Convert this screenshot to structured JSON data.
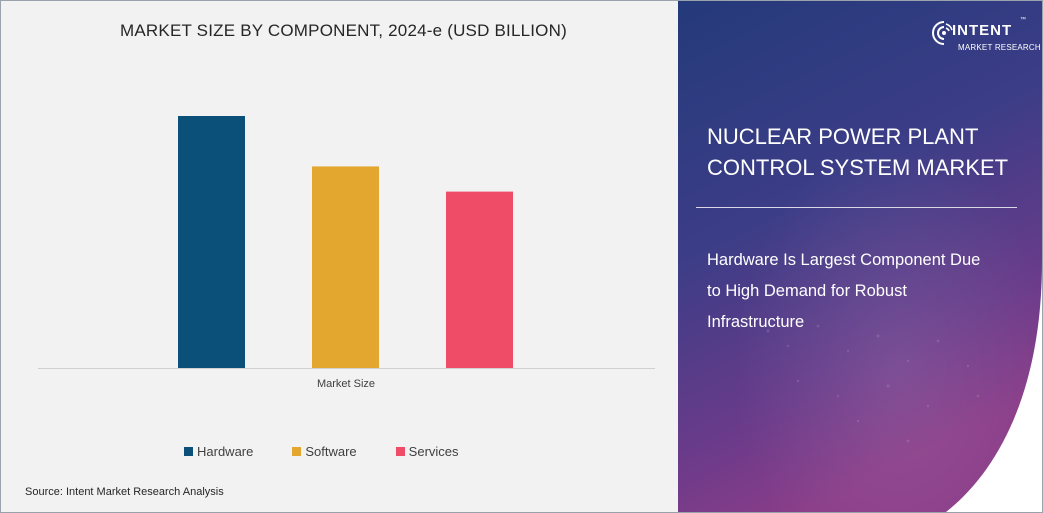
{
  "chart_data": {
    "type": "bar",
    "title": "MARKET SIZE BY COMPONENT, 2024-e (USD BILLION)",
    "categories": [
      "Market Size"
    ],
    "xlabel": "",
    "ylabel": "",
    "grid": false,
    "legend_position": "bottom",
    "series": [
      {
        "name": "Hardware",
        "values": [
          100
        ],
        "color": "#0b5078"
      },
      {
        "name": "Software",
        "values": [
          80
        ],
        "color": "#e3a72f"
      },
      {
        "name": "Services",
        "values": [
          70
        ],
        "color": "#ef4c68"
      }
    ],
    "ylim": [
      0,
      100
    ],
    "value_unit": "relative (no axis printed)"
  },
  "source": "Source: Intent Market Research Analysis",
  "brand": {
    "word": "INTENT",
    "sub": "MARKET RESEARCH",
    "tm": "™"
  },
  "panel": {
    "headline_lines": [
      "NUCLEAR POWER PLANT",
      "CONTROL SYSTEM MARKET"
    ],
    "insight_lines": [
      "Hardware Is Largest Component Due",
      "to High Demand for Robust",
      "Infrastructure"
    ],
    "gradient": [
      "#243a7a",
      "#3c3d87",
      "#6a3b8a",
      "#8a3c88"
    ]
  }
}
